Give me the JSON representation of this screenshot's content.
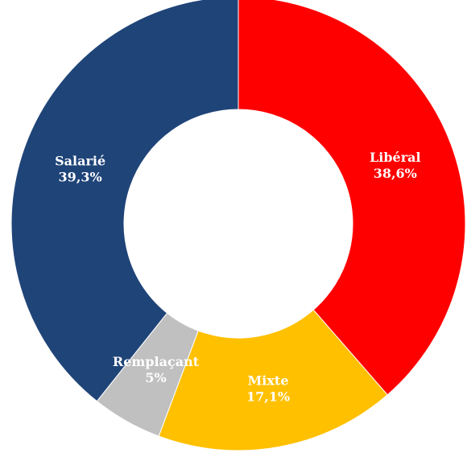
{
  "chart_data": {
    "type": "pie",
    "title": "",
    "labels": [
      "Libéral",
      "Mixte",
      "Remplaçant",
      "Salarié"
    ],
    "values": [
      38.6,
      17.1,
      5,
      39.3
    ],
    "value_labels": [
      "38,6%",
      "17,1%",
      "5%",
      "39,3%"
    ],
    "colors": [
      "#ff0000",
      "#ffc000",
      "#c0c0c0",
      "#1f4478"
    ],
    "start_angle_deg": 0,
    "direction": "clockwise",
    "donut": true,
    "legend": "none"
  }
}
